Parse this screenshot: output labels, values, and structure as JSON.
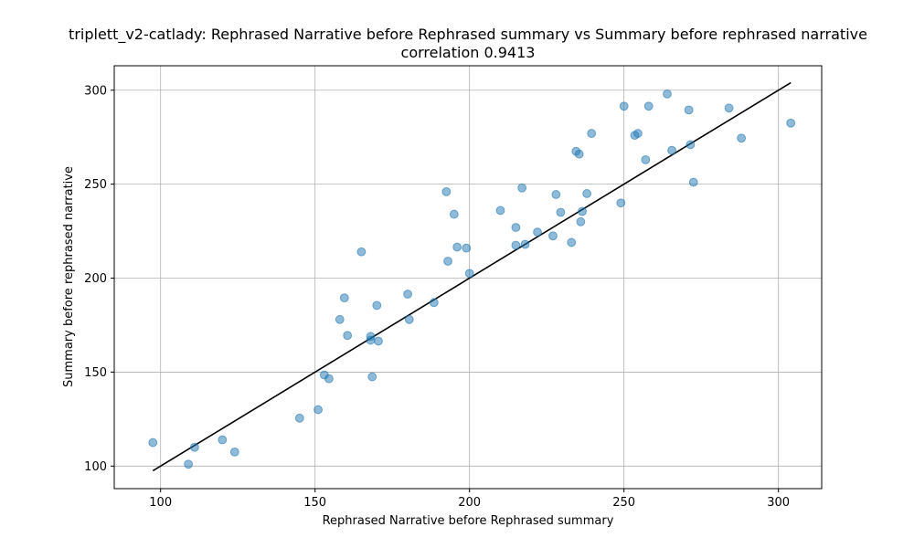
{
  "chart_data": {
    "type": "scatter",
    "title": "triplett_v2-catlady:  Rephrased Narrative before Rephrased summary vs Summary before rephrased narrative",
    "subtitle": "correlation 0.9413",
    "xlabel": "Rephrased Narrative before Rephrased summary",
    "ylabel": "Summary before rephrased narrative",
    "xlim": [
      85,
      314
    ],
    "ylim": [
      88,
      313
    ],
    "xticks": [
      100,
      150,
      200,
      250,
      300
    ],
    "yticks": [
      100,
      150,
      200,
      250,
      300
    ],
    "grid": true,
    "colors": {
      "points": "#1f77b4",
      "fit_line": "#000000",
      "grid": "#b0b0b0"
    },
    "fit_line": {
      "x": [
        97.5,
        304
      ],
      "y": [
        97.5,
        304
      ]
    },
    "points": [
      [
        97.5,
        112.5
      ],
      [
        109,
        101
      ],
      [
        111,
        110
      ],
      [
        120,
        114
      ],
      [
        124,
        107.5
      ],
      [
        145,
        125.5
      ],
      [
        151,
        130
      ],
      [
        153,
        148.5
      ],
      [
        154.5,
        146.5
      ],
      [
        158,
        178
      ],
      [
        159.5,
        189.5
      ],
      [
        160.5,
        169.5
      ],
      [
        165,
        214
      ],
      [
        168,
        169
      ],
      [
        168,
        167
      ],
      [
        168.5,
        147.5
      ],
      [
        170,
        185.5
      ],
      [
        170.5,
        166.5
      ],
      [
        180,
        191.5
      ],
      [
        180.5,
        178
      ],
      [
        188.5,
        187
      ],
      [
        192.5,
        246
      ],
      [
        193,
        209
      ],
      [
        195,
        234
      ],
      [
        196,
        216.5
      ],
      [
        199,
        216
      ],
      [
        200,
        202.5
      ],
      [
        210,
        236
      ],
      [
        215,
        227
      ],
      [
        215,
        217.5
      ],
      [
        217,
        248
      ],
      [
        218,
        218
      ],
      [
        222,
        224.5
      ],
      [
        227,
        222.5
      ],
      [
        228,
        244.5
      ],
      [
        229.5,
        235
      ],
      [
        233,
        219
      ],
      [
        234.5,
        267.5
      ],
      [
        235.5,
        266
      ],
      [
        236,
        230
      ],
      [
        236.5,
        235.5
      ],
      [
        238,
        245
      ],
      [
        239.5,
        277
      ],
      [
        249,
        240
      ],
      [
        250,
        291.5
      ],
      [
        253.5,
        276
      ],
      [
        254.5,
        277
      ],
      [
        257,
        263
      ],
      [
        258,
        291.5
      ],
      [
        264,
        298
      ],
      [
        265.5,
        268
      ],
      [
        271,
        289.5
      ],
      [
        271.5,
        271
      ],
      [
        272.5,
        251
      ],
      [
        284,
        290.5
      ],
      [
        288,
        274.5
      ],
      [
        304,
        282.5
      ]
    ]
  }
}
